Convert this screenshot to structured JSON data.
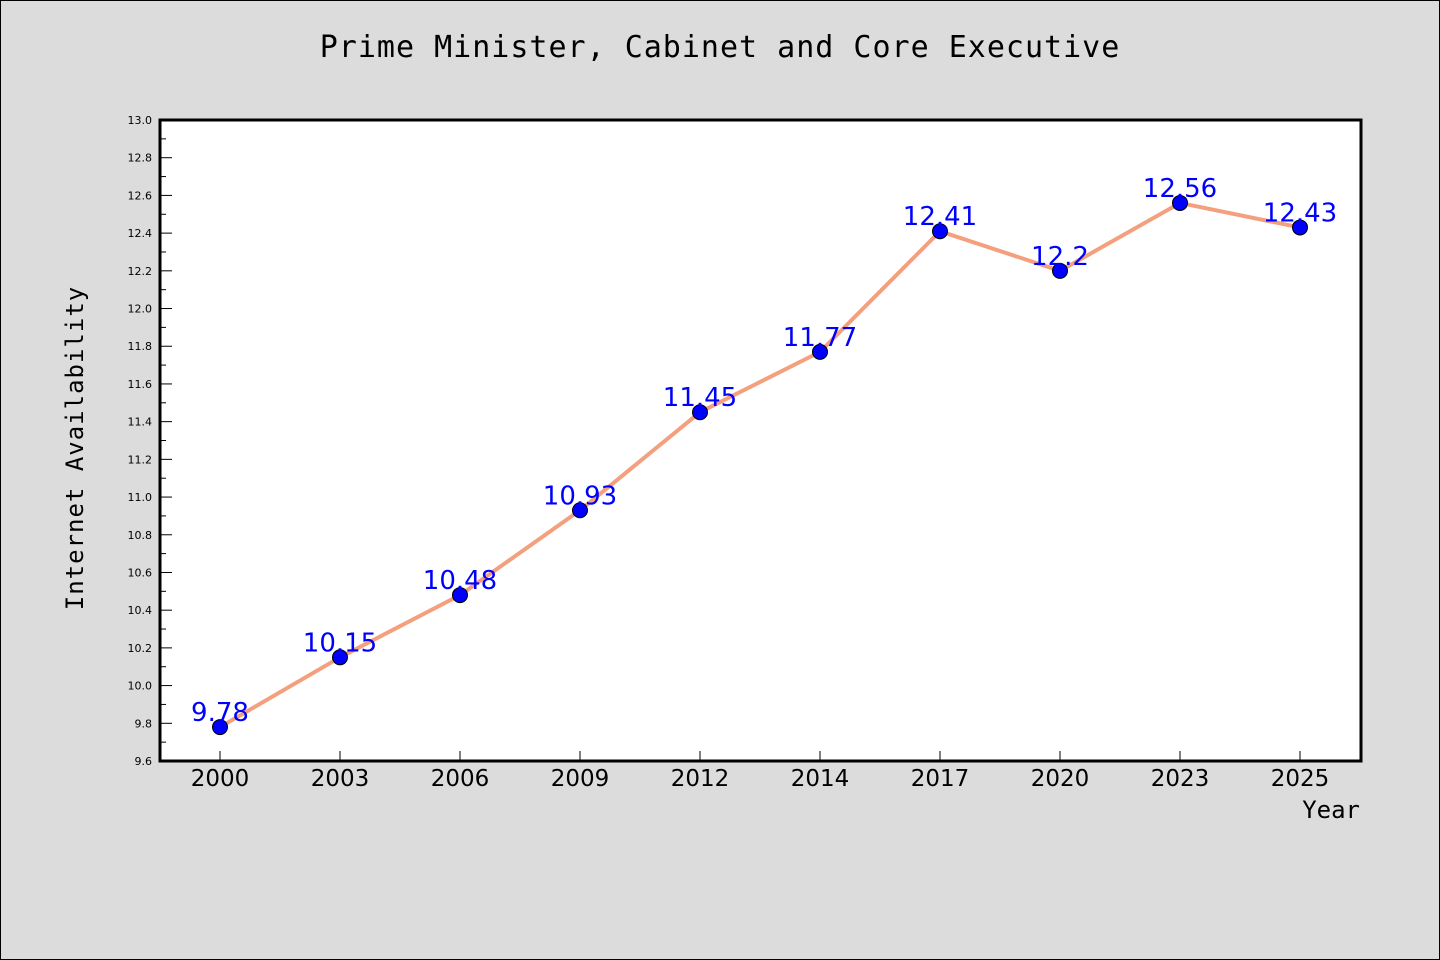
{
  "chart_data": {
    "type": "line",
    "title": "Prime Minister, Cabinet and Core Executive",
    "xlabel": "Year",
    "ylabel": "Internet Availability",
    "categories": [
      "2000",
      "2003",
      "2006",
      "2009",
      "2012",
      "2014",
      "2017",
      "2020",
      "2023",
      "2025"
    ],
    "series": [
      {
        "values": [
          9.78,
          10.15,
          10.48,
          10.93,
          11.45,
          11.77,
          12.41,
          12.2,
          12.56,
          12.43
        ],
        "value_labels": [
          "9.78",
          "10.15",
          "10.48",
          "10.93",
          "11.45",
          "11.77",
          "12.41",
          "12.2",
          "12.56",
          "12.43"
        ],
        "line_color": "#f4a07e",
        "marker_color": "#0000ff"
      }
    ],
    "ylim": [
      9.6,
      13.0
    ],
    "yticks": [
      "9.6",
      "9.8",
      "10.0",
      "10.2",
      "10.4",
      "10.6",
      "10.8",
      "11.0",
      "11.2",
      "11.4",
      "11.6",
      "11.8",
      "12.0",
      "12.2",
      "12.4",
      "12.6",
      "12.8",
      "13.0"
    ],
    "grid": false,
    "legend": "none"
  }
}
